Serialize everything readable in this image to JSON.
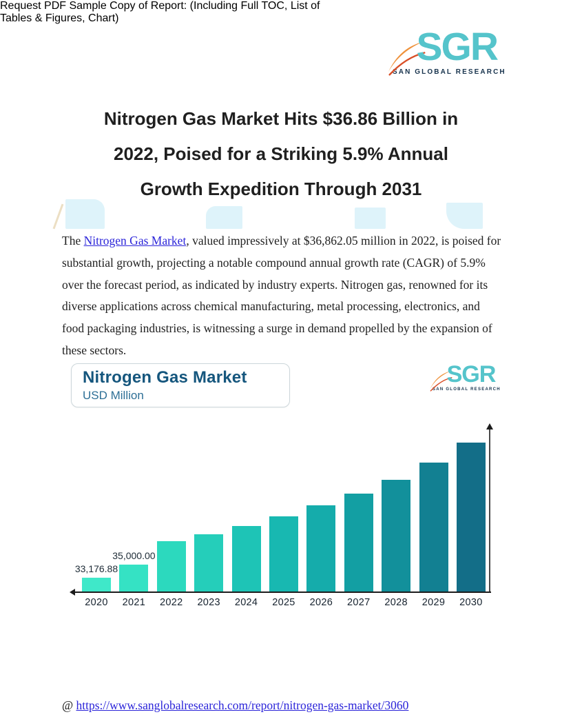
{
  "logo": {
    "acronym": "SGR",
    "caption": "SAN GLOBAL RESEARCH",
    "teal": "#55c4cb",
    "swoosh_orange": "#ef923c",
    "swoosh_red": "#d94f27",
    "caption_color": "#16324c"
  },
  "headline": {
    "lines": [
      "Nitrogen Gas Market Hits $36.86 Billion in",
      "2022, Poised for a Striking 5.9% Annual",
      "Growth Expedition Through 2031"
    ]
  },
  "intro": {
    "text_before": "The ",
    "link_text": "Nitrogen Gas Market",
    "text_after": ", valued impressively at $36,862.05 million in 2022, is poised for substantial growth, projecting a notable compound annual growth rate (CAGR) of 5.9% over the forecast period, as indicated by industry experts. Nitrogen gas, renowned for its diverse applications across chemical manufacturing, metal processing, electronics, and food packaging industries, is witnessing a surge in demand propelled by the expansion of these sectors.",
    "link_color": "#2b24d9"
  },
  "chart_card": {
    "title": "Nitrogen Gas Market",
    "subtitle": "USD Million",
    "title_color": "#15567d",
    "subtitle_color": "#2d6f96"
  },
  "chart_data": {
    "type": "bar",
    "title": "Nitrogen Gas Market",
    "ylabel": "USD Million",
    "xlabel": "",
    "grid": false,
    "legend": "none",
    "categories": [
      "2020",
      "2021",
      "2022",
      "2023",
      "2024",
      "2025",
      "2026",
      "2027",
      "2028",
      "2029",
      "2030"
    ],
    "bar_value_labels": [
      "33,176.88",
      "35,000.00",
      "",
      "",
      "",
      "",
      "",
      "",
      "",
      "",
      ""
    ],
    "labeled_points": [
      {
        "category": "2020",
        "value": 33176.88
      },
      {
        "category": "2021",
        "value": 35000.0
      }
    ],
    "relative_heights_pct": [
      9.7,
      18.4,
      34.1,
      38.7,
      44.2,
      50.7,
      58.1,
      65.9,
      75.1,
      86.6,
      100
    ],
    "bar_colors": [
      "#3fe8c9",
      "#35e2c4",
      "#2cd9be",
      "#25ceba",
      "#1ec4b6",
      "#18b8b1",
      "#15acab",
      "#139fa3",
      "#12909b",
      "#128092",
      "#136e88"
    ],
    "axis_color": "#1c1c1c",
    "note": "y-axis unlabeled; bar baseline is truncated (non-zero)"
  },
  "footer": {
    "request_lines": [
      "Request PDF Sample Copy of Report: (Including Full TOC, List of",
      "Tables & Figures, Chart)"
    ],
    "at_prefix": "@ ",
    "link_text": "https://www.sanglobalresearch.com/report/nitrogen-gas-market/3060"
  }
}
